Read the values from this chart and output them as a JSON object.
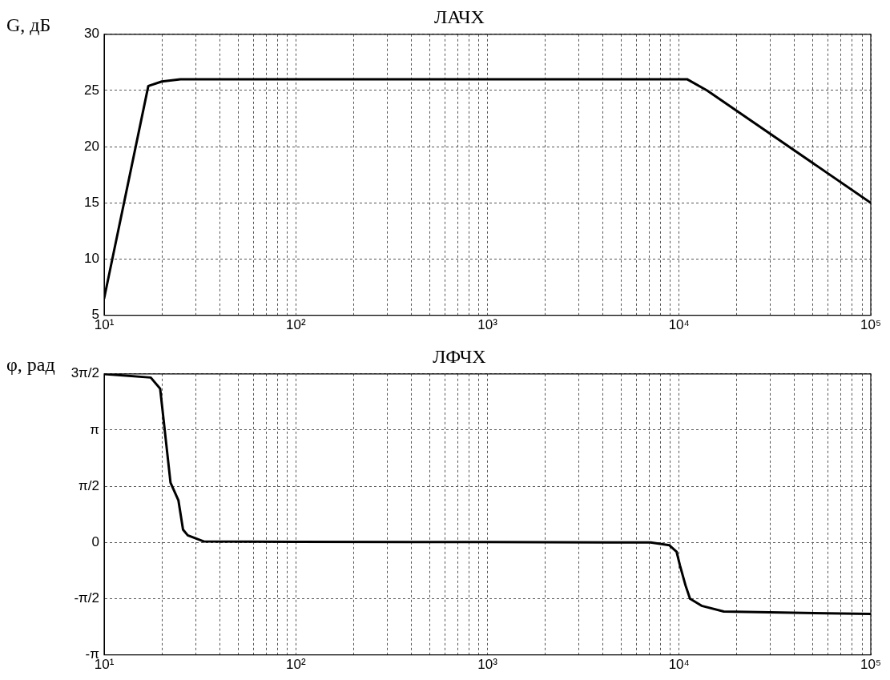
{
  "chart_data": [
    {
      "type": "line",
      "title": "ЛАЧХ",
      "ylabel": "G, дБ",
      "series": [
        {
          "color": "#000000",
          "x": [
            10,
            17,
            20,
            25,
            11000,
            14000,
            100000
          ],
          "values": [
            6.5,
            25.4,
            25.8,
            26,
            26,
            25,
            15
          ]
        }
      ],
      "xlim": [
        10,
        100000
      ],
      "xticks": [
        {
          "value": 10,
          "label": "10¹"
        },
        {
          "value": 20,
          "label": null
        },
        {
          "value": 30,
          "label": null
        },
        {
          "value": 40,
          "label": null
        },
        {
          "value": 50,
          "label": null
        },
        {
          "value": 60,
          "label": null
        },
        {
          "value": 70,
          "label": null
        },
        {
          "value": 80,
          "label": null
        },
        {
          "value": 90,
          "label": null
        },
        {
          "value": 100,
          "label": "10²"
        },
        {
          "value": 200,
          "label": null
        },
        {
          "value": 300,
          "label": null
        },
        {
          "value": 400,
          "label": null
        },
        {
          "value": 500,
          "label": null
        },
        {
          "value": 600,
          "label": null
        },
        {
          "value": 700,
          "label": null
        },
        {
          "value": 800,
          "label": null
        },
        {
          "value": 900,
          "label": null
        },
        {
          "value": 1000,
          "label": "10³"
        },
        {
          "value": 2000,
          "label": null
        },
        {
          "value": 3000,
          "label": null
        },
        {
          "value": 4000,
          "label": null
        },
        {
          "value": 5000,
          "label": null
        },
        {
          "value": 6000,
          "label": null
        },
        {
          "value": 7000,
          "label": null
        },
        {
          "value": 8000,
          "label": null
        },
        {
          "value": 9000,
          "label": null
        },
        {
          "value": 10000,
          "label": "10⁴"
        },
        {
          "value": 20000,
          "label": null
        },
        {
          "value": 30000,
          "label": null
        },
        {
          "value": 40000,
          "label": null
        },
        {
          "value": 50000,
          "label": null
        },
        {
          "value": 60000,
          "label": null
        },
        {
          "value": 70000,
          "label": null
        },
        {
          "value": 80000,
          "label": null
        },
        {
          "value": 90000,
          "label": null
        },
        {
          "value": 100000,
          "label": "10⁵"
        }
      ],
      "ylim": [
        5,
        30
      ],
      "yticks": [
        5,
        10,
        15,
        20,
        25,
        30
      ],
      "log": "x",
      "grid": true,
      "line_style": "solid"
    },
    {
      "type": "line",
      "title": "ЛФЧХ",
      "ylabel": "φ, рад",
      "series": [
        {
          "color": "#000000",
          "x": [
            10,
            17.5,
            19.6,
            22.2,
            24.4,
            25.8,
            27.3,
            33,
            100,
            1000,
            7100,
            8900,
            9700,
            10100,
            10800,
            11400,
            13100,
            17100,
            100000
          ],
          "values": [
            4.71,
            4.61,
            4.3,
            1.67,
            1.18,
            0.36,
            0.2,
            0.03,
            0.02,
            0.01,
            0,
            -0.08,
            -0.26,
            -0.64,
            -1.2,
            -1.57,
            -1.77,
            -1.93,
            -2.0
          ]
        }
      ],
      "xlim": [
        10,
        100000
      ],
      "xticks": [
        {
          "value": 10,
          "label": "10¹"
        },
        {
          "value": 20,
          "label": null
        },
        {
          "value": 30,
          "label": null
        },
        {
          "value": 40,
          "label": null
        },
        {
          "value": 50,
          "label": null
        },
        {
          "value": 60,
          "label": null
        },
        {
          "value": 70,
          "label": null
        },
        {
          "value": 80,
          "label": null
        },
        {
          "value": 90,
          "label": null
        },
        {
          "value": 100,
          "label": "10²"
        },
        {
          "value": 200,
          "label": null
        },
        {
          "value": 300,
          "label": null
        },
        {
          "value": 400,
          "label": null
        },
        {
          "value": 500,
          "label": null
        },
        {
          "value": 600,
          "label": null
        },
        {
          "value": 700,
          "label": null
        },
        {
          "value": 800,
          "label": null
        },
        {
          "value": 900,
          "label": null
        },
        {
          "value": 1000,
          "label": "10³"
        },
        {
          "value": 2000,
          "label": null
        },
        {
          "value": 3000,
          "label": null
        },
        {
          "value": 4000,
          "label": null
        },
        {
          "value": 5000,
          "label": null
        },
        {
          "value": 6000,
          "label": null
        },
        {
          "value": 7000,
          "label": null
        },
        {
          "value": 8000,
          "label": null
        },
        {
          "value": 9000,
          "label": null
        },
        {
          "value": 10000,
          "label": "10⁴"
        },
        {
          "value": 20000,
          "label": null
        },
        {
          "value": 30000,
          "label": null
        },
        {
          "value": 40000,
          "label": null
        },
        {
          "value": 50000,
          "label": null
        },
        {
          "value": 60000,
          "label": null
        },
        {
          "value": 70000,
          "label": null
        },
        {
          "value": 80000,
          "label": null
        },
        {
          "value": 90000,
          "label": null
        },
        {
          "value": 100000,
          "label": "10⁵"
        }
      ],
      "ylim": [
        -3.1416,
        4.7124
      ],
      "yticks": [
        {
          "value": -3.1416,
          "label": "-π"
        },
        {
          "value": -1.5708,
          "label": "-π/2"
        },
        {
          "value": 0,
          "label": "0"
        },
        {
          "value": 1.5708,
          "label": "π/2"
        },
        {
          "value": 3.1416,
          "label": "π"
        },
        {
          "value": 4.7124,
          "label": "3π/2"
        }
      ],
      "log": "x",
      "grid": true,
      "line_style": "solid"
    }
  ]
}
